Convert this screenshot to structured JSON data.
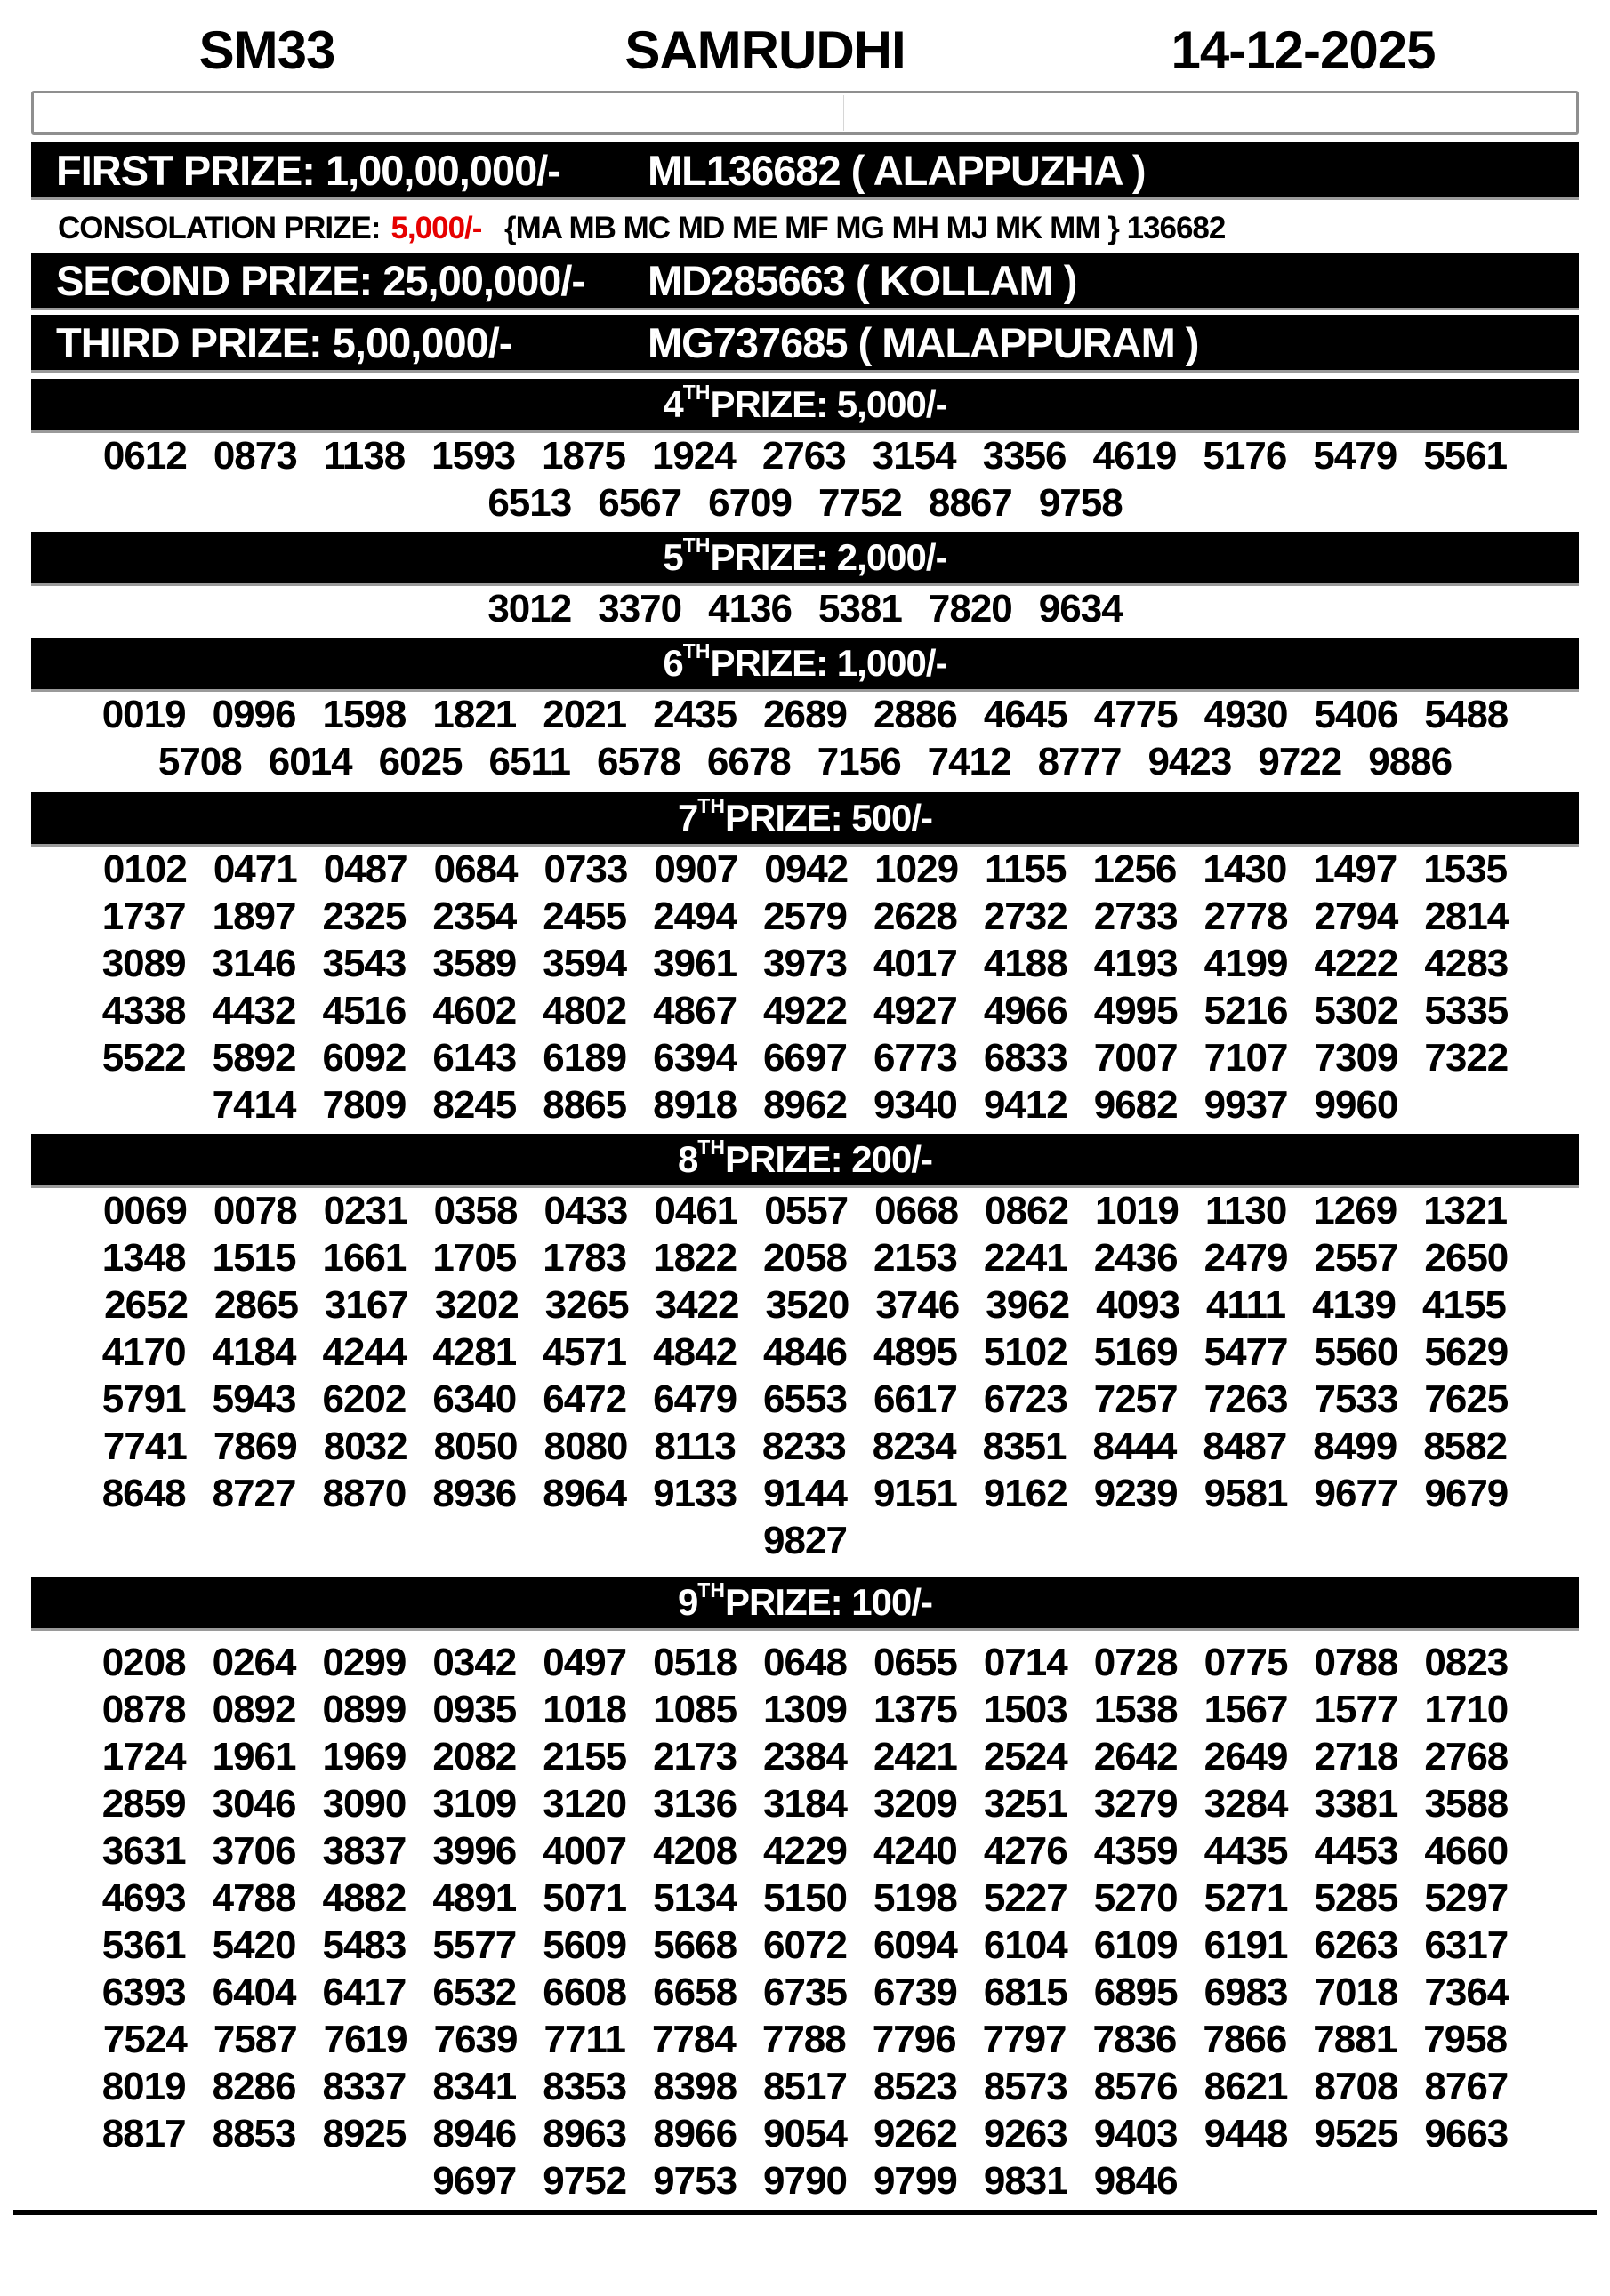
{
  "header": {
    "draw_code": "SM33",
    "title": "SAMRUDHI",
    "date": "14-12-2025"
  },
  "first_prize": {
    "label": "FIRST PRIZE: 1,00,00,000/-",
    "winner": "ML136682 ( ALAPPUZHA )"
  },
  "consolation": {
    "label": "CONSOLATION PRIZE:",
    "amount": "5,000/-",
    "amount_color": "#e60000",
    "series": "{MA MB MC MD ME MF MG MH MJ MK MM } 136682"
  },
  "second_prize": {
    "label": "SECOND PRIZE: 25,00,000/-",
    "winner": "MD285663 ( KOLLAM )"
  },
  "third_prize": {
    "label": "THIRD PRIZE: 5,00,000/-",
    "winner": "MG737685 ( MALAPPURAM )"
  },
  "sections": [
    {
      "rank": "4",
      "sup": "TH",
      "rest": " PRIZE: 5,000/-",
      "rows": [
        [
          "0612",
          "0873",
          "1138",
          "1593",
          "1875",
          "1924",
          "2763",
          "3154",
          "3356",
          "4619",
          "5176",
          "5479",
          "5561"
        ],
        [
          "6513",
          "6567",
          "6709",
          "7752",
          "8867",
          "9758"
        ]
      ]
    },
    {
      "rank": "5",
      "sup": "TH",
      "rest": " PRIZE: 2,000/-",
      "rows": [
        [
          "3012",
          "3370",
          "4136",
          "5381",
          "7820",
          "9634"
        ]
      ]
    },
    {
      "rank": "6",
      "sup": "TH",
      "rest": " PRIZE: 1,000/-",
      "rows": [
        [
          "0019",
          "0996",
          "1598",
          "1821",
          "2021",
          "2435",
          "2689",
          "2886",
          "4645",
          "4775",
          "4930",
          "5406",
          "5488"
        ],
        [
          "5708",
          "6014",
          "6025",
          "6511",
          "6578",
          "6678",
          "7156",
          "7412",
          "8777",
          "9423",
          "9722",
          "9886"
        ]
      ]
    },
    {
      "rank": "7",
      "sup": "TH",
      "rest": " PRIZE: 500/-",
      "rows": [
        [
          "0102",
          "0471",
          "0487",
          "0684",
          "0733",
          "0907",
          "0942",
          "1029",
          "1155",
          "1256",
          "1430",
          "1497",
          "1535"
        ],
        [
          "1737",
          "1897",
          "2325",
          "2354",
          "2455",
          "2494",
          "2579",
          "2628",
          "2732",
          "2733",
          "2778",
          "2794",
          "2814"
        ],
        [
          "3089",
          "3146",
          "3543",
          "3589",
          "3594",
          "3961",
          "3973",
          "4017",
          "4188",
          "4193",
          "4199",
          "4222",
          "4283"
        ],
        [
          "4338",
          "4432",
          "4516",
          "4602",
          "4802",
          "4867",
          "4922",
          "4927",
          "4966",
          "4995",
          "5216",
          "5302",
          "5335"
        ],
        [
          "5522",
          "5892",
          "6092",
          "6143",
          "6189",
          "6394",
          "6697",
          "6773",
          "6833",
          "7007",
          "7107",
          "7309",
          "7322"
        ],
        [
          "7414",
          "7809",
          "8245",
          "8865",
          "8918",
          "8962",
          "9340",
          "9412",
          "9682",
          "9937",
          "9960"
        ]
      ]
    },
    {
      "rank": "8",
      "sup": "TH",
      "rest": " PRIZE: 200/-",
      "rows": [
        [
          "0069",
          "0078",
          "0231",
          "0358",
          "0433",
          "0461",
          "0557",
          "0668",
          "0862",
          "1019",
          "1130",
          "1269",
          "1321"
        ],
        [
          "1348",
          "1515",
          "1661",
          "1705",
          "1783",
          "1822",
          "2058",
          "2153",
          "2241",
          "2436",
          "2479",
          "2557",
          "2650"
        ],
        [
          "2652",
          "2865",
          "3167",
          "3202",
          "3265",
          "3422",
          "3520",
          "3746",
          "3962",
          "4093",
          "4111",
          "4139",
          "4155"
        ],
        [
          "4170",
          "4184",
          "4244",
          "4281",
          "4571",
          "4842",
          "4846",
          "4895",
          "5102",
          "5169",
          "5477",
          "5560",
          "5629"
        ],
        [
          "5791",
          "5943",
          "6202",
          "6340",
          "6472",
          "6479",
          "6553",
          "6617",
          "6723",
          "7257",
          "7263",
          "7533",
          "7625"
        ],
        [
          "7741",
          "7869",
          "8032",
          "8050",
          "8080",
          "8113",
          "8233",
          "8234",
          "8351",
          "8444",
          "8487",
          "8499",
          "8582"
        ],
        [
          "8648",
          "8727",
          "8870",
          "8936",
          "8964",
          "9133",
          "9144",
          "9151",
          "9162",
          "9239",
          "9581",
          "9677",
          "9679"
        ],
        [
          "9827"
        ]
      ]
    },
    {
      "rank": "9",
      "sup": "TH",
      "rest": " PRIZE: 100/-",
      "rows": [
        [
          "0208",
          "0264",
          "0299",
          "0342",
          "0497",
          "0518",
          "0648",
          "0655",
          "0714",
          "0728",
          "0775",
          "0788",
          "0823"
        ],
        [
          "0878",
          "0892",
          "0899",
          "0935",
          "1018",
          "1085",
          "1309",
          "1375",
          "1503",
          "1538",
          "1567",
          "1577",
          "1710"
        ],
        [
          "1724",
          "1961",
          "1969",
          "2082",
          "2155",
          "2173",
          "2384",
          "2421",
          "2524",
          "2642",
          "2649",
          "2718",
          "2768"
        ],
        [
          "2859",
          "3046",
          "3090",
          "3109",
          "3120",
          "3136",
          "3184",
          "3209",
          "3251",
          "3279",
          "3284",
          "3381",
          "3588"
        ],
        [
          "3631",
          "3706",
          "3837",
          "3996",
          "4007",
          "4208",
          "4229",
          "4240",
          "4276",
          "4359",
          "4435",
          "4453",
          "4660"
        ],
        [
          "4693",
          "4788",
          "4882",
          "4891",
          "5071",
          "5134",
          "5150",
          "5198",
          "5227",
          "5270",
          "5271",
          "5285",
          "5297"
        ],
        [
          "5361",
          "5420",
          "5483",
          "5577",
          "5609",
          "5668",
          "6072",
          "6094",
          "6104",
          "6109",
          "6191",
          "6263",
          "6317"
        ],
        [
          "6393",
          "6404",
          "6417",
          "6532",
          "6608",
          "6658",
          "6735",
          "6739",
          "6815",
          "6895",
          "6983",
          "7018",
          "7364"
        ],
        [
          "7524",
          "7587",
          "7619",
          "7639",
          "7711",
          "7784",
          "7788",
          "7796",
          "7797",
          "7836",
          "7866",
          "7881",
          "7958"
        ],
        [
          "8019",
          "8286",
          "8337",
          "8341",
          "8353",
          "8398",
          "8517",
          "8523",
          "8573",
          "8576",
          "8621",
          "8708",
          "8767"
        ],
        [
          "8817",
          "8853",
          "8925",
          "8946",
          "8963",
          "8966",
          "9054",
          "9262",
          "9263",
          "9403",
          "9448",
          "9525",
          "9663"
        ],
        [
          "9697",
          "9752",
          "9753",
          "9790",
          "9799",
          "9831",
          "9846"
        ]
      ]
    }
  ]
}
